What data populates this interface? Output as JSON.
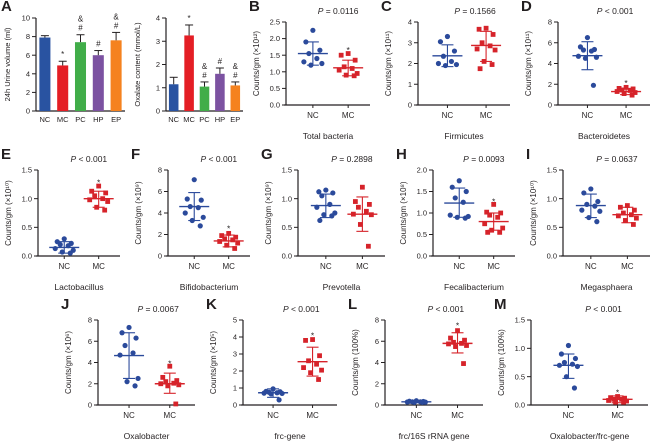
{
  "figure": {
    "background": "#ffffff",
    "group_colors": {
      "NC": "#2b4a9b",
      "MC": "#d6232a"
    },
    "axis_color": "#231f20"
  },
  "chart_data": [
    {
      "panel": "A-left",
      "letter": "A",
      "type": "bar",
      "ylabel": "24h Urine volume (ml)",
      "ylim": [
        0,
        10
      ],
      "yticks": [
        0,
        2,
        4,
        6,
        8,
        10
      ],
      "ytick_labels": [
        "0",
        "2",
        "4",
        "6",
        "8",
        "10"
      ],
      "categories": [
        "NC",
        "MC",
        "PC",
        "HP",
        "EP"
      ],
      "values": [
        7.9,
        4.9,
        7.4,
        6.0,
        7.6
      ],
      "errors": [
        0.2,
        0.45,
        0.8,
        0.5,
        0.85
      ],
      "colors": [
        "#2953a1",
        "#e41e25",
        "#41ad49",
        "#7c52a1",
        "#f5821f"
      ],
      "annotations": [
        [],
        [
          "*"
        ],
        [
          "&",
          "#"
        ],
        [
          "#"
        ],
        [
          "&",
          "#"
        ]
      ]
    },
    {
      "panel": "A-right",
      "letter": "",
      "type": "bar",
      "ylabel": "Oxalate content (mmol/L)",
      "ylim": [
        0,
        4
      ],
      "yticks": [
        0,
        1,
        2,
        3,
        4
      ],
      "ytick_labels": [
        "0",
        "1",
        "2",
        "3",
        "4"
      ],
      "categories": [
        "NC",
        "MC",
        "PC",
        "HP",
        "EP"
      ],
      "values": [
        1.15,
        3.25,
        1.05,
        1.6,
        1.1
      ],
      "errors": [
        0.3,
        0.45,
        0.2,
        0.25,
        0.15
      ],
      "colors": [
        "#2953a1",
        "#e41e25",
        "#41ad49",
        "#7c52a1",
        "#f5821f"
      ],
      "annotations": [
        [],
        [
          "*"
        ],
        [
          "&",
          "#"
        ],
        [
          "#"
        ],
        [
          "&",
          "#"
        ]
      ]
    },
    {
      "panel": "B",
      "letter": "B",
      "type": "scatter",
      "p_label": "P = 0.0116",
      "ylabel": "Counts/gm (×10¹²)",
      "xlabel": "Total bacteria",
      "ylim": [
        0,
        2.5
      ],
      "yticks": [
        0,
        0.5,
        1.0,
        1.5,
        2.0,
        2.5
      ],
      "ytick_labels": [
        "0.0",
        "0.5",
        "1.0",
        "1.5",
        "2.0",
        "2.5"
      ],
      "groups": [
        {
          "name": "NC",
          "marker": "circle",
          "values": [
            2.25,
            1.9,
            1.65,
            1.55,
            1.4,
            1.3,
            1.25,
            1.2
          ],
          "mean": 1.55,
          "err": [
            1.2,
            1.9
          ]
        },
        {
          "name": "MC",
          "marker": "square",
          "values": [
            1.55,
            1.5,
            1.35,
            1.15,
            1.1,
            1.05,
            0.95,
            0.9,
            0.88
          ],
          "mean": 1.12,
          "err": [
            0.88,
            1.35
          ],
          "star": 1.65
        }
      ]
    },
    {
      "panel": "C",
      "letter": "C",
      "type": "scatter",
      "p_label": "P = 0.1566",
      "ylabel": "Counts/gm (×10¹¹)",
      "xlabel": "Firmicutes",
      "ylim": [
        0,
        4
      ],
      "yticks": [
        0,
        1,
        2,
        3,
        4
      ],
      "ytick_labels": [
        "0",
        "1",
        "2",
        "3",
        "4"
      ],
      "groups": [
        {
          "name": "NC",
          "marker": "circle",
          "values": [
            3.3,
            3.05,
            2.6,
            2.35,
            2.1,
            2.0,
            1.95,
            1.9
          ],
          "mean": 2.37,
          "err": [
            1.85,
            2.9
          ]
        },
        {
          "name": "MC",
          "marker": "square",
          "values": [
            3.7,
            3.65,
            3.4,
            3.0,
            2.85,
            2.7,
            2.65,
            2.1,
            1.95,
            1.75
          ],
          "mean": 2.87,
          "err": [
            2.1,
            3.55
          ]
        }
      ]
    },
    {
      "panel": "D",
      "letter": "D",
      "type": "scatter",
      "p_label": "P < 0.001",
      "ylabel": "Counts/gm (×10¹¹)",
      "xlabel": "Bacteroidetes",
      "ylim": [
        0,
        8
      ],
      "yticks": [
        0,
        2,
        4,
        6,
        8
      ],
      "ytick_labels": [
        "0",
        "2",
        "4",
        "6",
        "8"
      ],
      "groups": [
        {
          "name": "NC",
          "marker": "circle",
          "values": [
            6.5,
            5.6,
            5.35,
            5.3,
            5.2,
            4.7,
            4.6,
            4.5,
            1.9
          ],
          "mean": 4.75,
          "err": [
            3.4,
            6.1
          ]
        },
        {
          "name": "MC",
          "marker": "square",
          "values": [
            1.7,
            1.6,
            1.55,
            1.45,
            1.4,
            1.3,
            1.2,
            1.1,
            0.95
          ],
          "mean": 1.3,
          "err": [
            1.0,
            1.6
          ],
          "star": 2.1
        }
      ]
    },
    {
      "panel": "E",
      "letter": "E",
      "type": "scatter",
      "p_label": "P < 0.001",
      "ylabel": "Counts/gm (×10¹⁰)",
      "xlabel": "Lactobacillus",
      "ylim": [
        0,
        1.5
      ],
      "yticks": [
        0,
        0.5,
        1.0,
        1.5
      ],
      "ytick_labels": [
        "0.0",
        "0.5",
        "1.0",
        "1.5"
      ],
      "groups": [
        {
          "name": "NC",
          "marker": "circle",
          "values": [
            0.3,
            0.25,
            0.22,
            0.2,
            0.18,
            0.13,
            0.1,
            0.07,
            0.05
          ],
          "mean": 0.15,
          "err": [
            0.05,
            0.25
          ]
        },
        {
          "name": "MC",
          "marker": "square",
          "values": [
            1.22,
            1.13,
            1.1,
            1.05,
            1.0,
            0.98,
            0.95,
            0.85,
            0.8
          ],
          "mean": 1.0,
          "err": [
            0.85,
            1.13
          ],
          "star": 1.28
        }
      ]
    },
    {
      "panel": "F",
      "letter": "F",
      "type": "scatter",
      "p_label": "P < 0.001",
      "ylabel": "Counts/gm (×10⁹)",
      "xlabel": "Bifidobacterium",
      "ylim": [
        0,
        8
      ],
      "yticks": [
        0,
        2,
        4,
        6,
        8
      ],
      "ytick_labels": [
        "0",
        "2",
        "4",
        "6",
        "8"
      ],
      "groups": [
        {
          "name": "NC",
          "marker": "circle",
          "values": [
            7.1,
            5.3,
            5.2,
            4.6,
            4.5,
            4.0,
            3.6,
            3.3,
            2.8
          ],
          "mean": 4.6,
          "err": [
            3.3,
            5.9
          ]
        },
        {
          "name": "MC",
          "marker": "square",
          "values": [
            2.1,
            1.9,
            1.75,
            1.6,
            1.5,
            1.35,
            1.2,
            1.0,
            0.7
          ],
          "mean": 1.4,
          "err": [
            0.85,
            1.95
          ],
          "star": 2.55
        }
      ]
    },
    {
      "panel": "G",
      "letter": "G",
      "type": "scatter",
      "p_label": "P = 0.2898",
      "ylabel": "Counts/gm (×10⁹)",
      "xlabel": "Prevotella",
      "ylim": [
        0,
        1.5
      ],
      "yticks": [
        0,
        0.5,
        1.0,
        1.5
      ],
      "ytick_labels": [
        "0.0",
        "0.5",
        "1.0",
        "1.5"
      ],
      "groups": [
        {
          "name": "NC",
          "marker": "circle",
          "values": [
            1.15,
            1.12,
            1.1,
            1.05,
            0.9,
            0.85,
            0.75,
            0.72,
            0.7,
            0.62
          ],
          "mean": 0.88,
          "err": [
            0.67,
            1.08
          ]
        },
        {
          "name": "MC",
          "marker": "square",
          "values": [
            1.2,
            0.95,
            0.9,
            0.85,
            0.78,
            0.73,
            0.72,
            0.55,
            0.17
          ],
          "mean": 0.73,
          "err": [
            0.43,
            1.03
          ]
        }
      ]
    },
    {
      "panel": "H",
      "letter": "H",
      "type": "scatter",
      "p_label": "P = 0.0093",
      "ylabel": "Counts/gm (×10⁸)",
      "xlabel": "Fecalibacterium",
      "ylim": [
        0,
        2.0
      ],
      "yticks": [
        0,
        0.5,
        1.0,
        1.5,
        2.0
      ],
      "ytick_labels": [
        "0.0",
        "0.5",
        "1.0",
        "1.5",
        "2.0"
      ],
      "groups": [
        {
          "name": "NC",
          "marker": "circle",
          "values": [
            1.75,
            1.6,
            1.5,
            1.35,
            1.25,
            0.95,
            0.92,
            0.9,
            0.88
          ],
          "mean": 1.23,
          "err": [
            0.9,
            1.58
          ]
        },
        {
          "name": "MC",
          "marker": "square",
          "values": [
            1.2,
            1.02,
            1.0,
            0.95,
            0.9,
            0.75,
            0.65,
            0.6,
            0.55,
            0.55
          ],
          "mean": 0.8,
          "err": [
            0.6,
            1.0
          ],
          "star": 1.27
        }
      ]
    },
    {
      "panel": "I",
      "letter": "I",
      "type": "scatter",
      "p_label": "P = 0.0637",
      "ylabel": "Counts/gm (×10¹⁰)",
      "xlabel": "Megasphaera",
      "ylim": [
        0,
        1.5
      ],
      "yticks": [
        0,
        0.5,
        1.0,
        1.5
      ],
      "ytick_labels": [
        "0.0",
        "0.5",
        "1.0",
        "1.5"
      ],
      "groups": [
        {
          "name": "NC",
          "marker": "circle",
          "values": [
            1.17,
            1.1,
            0.95,
            0.9,
            0.87,
            0.8,
            0.78,
            0.67,
            0.6
          ],
          "mean": 0.88,
          "err": [
            0.67,
            1.08
          ]
        },
        {
          "name": "MC",
          "marker": "square",
          "values": [
            0.88,
            0.85,
            0.8,
            0.75,
            0.72,
            0.7,
            0.66,
            0.62,
            0.55
          ],
          "mean": 0.72,
          "err": [
            0.58,
            0.85
          ]
        }
      ]
    },
    {
      "panel": "J",
      "letter": "J",
      "type": "scatter",
      "p_label": "P = 0.0067",
      "ylabel": "Counts/gm (×10⁶)",
      "xlabel": "Oxalobacter",
      "ylim": [
        0,
        8
      ],
      "yticks": [
        0,
        2,
        4,
        6,
        8
      ],
      "ytick_labels": [
        "0",
        "2",
        "4",
        "6",
        "8"
      ],
      "groups": [
        {
          "name": "NC",
          "marker": "circle",
          "values": [
            7.3,
            6.8,
            6.3,
            5.6,
            4.9,
            4.7,
            2.5,
            2.2,
            1.8
          ],
          "mean": 4.65,
          "err": [
            2.5,
            6.8
          ]
        },
        {
          "name": "MC",
          "marker": "square",
          "values": [
            3.65,
            2.6,
            2.3,
            2.2,
            2.05,
            2.0,
            1.9,
            1.8,
            0.1
          ],
          "mean": 2.0,
          "err": [
            1.1,
            3.0
          ],
          "star": 3.9
        }
      ]
    },
    {
      "panel": "K",
      "letter": "K",
      "type": "scatter",
      "p_label": "P < 0.001",
      "ylabel": "Counts/gm (×10⁵)",
      "xlabel": "frc-gene",
      "ylim": [
        0,
        5
      ],
      "yticks": [
        0,
        1,
        2,
        3,
        4,
        5
      ],
      "ytick_labels": [
        "0",
        "1",
        "2",
        "3",
        "4",
        "5"
      ],
      "groups": [
        {
          "name": "NC",
          "marker": "circle",
          "values": [
            0.95,
            0.8,
            0.78,
            0.75,
            0.72,
            0.7,
            0.68,
            0.65,
            0.3
          ],
          "mean": 0.72,
          "err": [
            0.45,
            0.95
          ]
        },
        {
          "name": "MC",
          "marker": "square",
          "values": [
            3.85,
            3.8,
            2.9,
            2.6,
            2.4,
            2.2,
            2.05,
            1.9,
            1.5
          ],
          "mean": 2.55,
          "err": [
            1.7,
            3.4
          ],
          "star": 4.1
        }
      ]
    },
    {
      "panel": "L",
      "letter": "L",
      "type": "scatter",
      "p_label": "P < 0.001",
      "ylabel": "Counts/gm (100%)",
      "xlabel": "frc/16S rRNA gene",
      "ylim": [
        0,
        8
      ],
      "yticks": [
        0,
        2,
        4,
        6,
        8
      ],
      "ytick_labels": [
        "0",
        "2",
        "4",
        "6",
        "8"
      ],
      "groups": [
        {
          "name": "NC",
          "marker": "circle",
          "values": [
            0.4,
            0.35,
            0.33,
            0.3,
            0.3,
            0.28,
            0.27,
            0.25,
            0.25
          ],
          "mean": 0.3,
          "err": [
            0.22,
            0.4
          ]
        },
        {
          "name": "MC",
          "marker": "square",
          "values": [
            7.0,
            6.3,
            6.1,
            5.9,
            5.8,
            5.75,
            5.6,
            5.5,
            3.9
          ],
          "mean": 5.8,
          "err": [
            4.9,
            6.8
          ],
          "star": 7.5
        }
      ]
    },
    {
      "panel": "M",
      "letter": "M",
      "type": "scatter",
      "p_label": "P < 0.001",
      "ylabel": "Counts/gm (100%)",
      "xlabel": "Oxalobacter/frc-gene",
      "ylim": [
        0,
        1.5
      ],
      "yticks": [
        0,
        0.5,
        1.0,
        1.5
      ],
      "ytick_labels": [
        "0.0",
        "0.5",
        "1.0",
        "1.5"
      ],
      "groups": [
        {
          "name": "NC",
          "marker": "circle",
          "values": [
            1.05,
            0.9,
            0.82,
            0.75,
            0.72,
            0.7,
            0.68,
            0.5,
            0.3
          ],
          "mean": 0.7,
          "err": [
            0.47,
            0.9
          ]
        },
        {
          "name": "MC",
          "marker": "square",
          "values": [
            0.15,
            0.13,
            0.12,
            0.1,
            0.1,
            0.08,
            0.07,
            0.05,
            0.05
          ],
          "mean": 0.1,
          "err": [
            0.04,
            0.16
          ],
          "star": 0.22
        }
      ]
    }
  ]
}
